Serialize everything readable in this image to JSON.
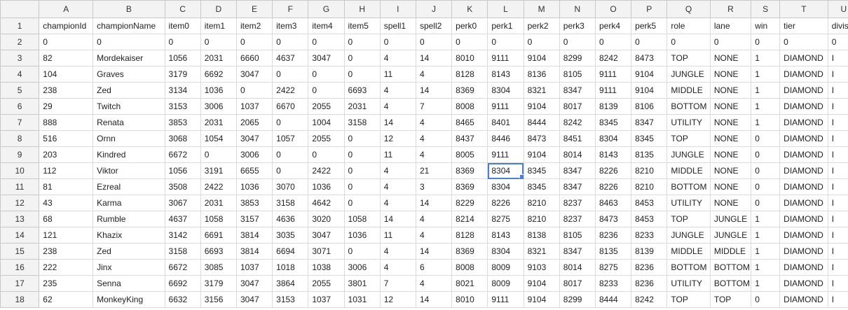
{
  "columns": [
    "A",
    "B",
    "C",
    "D",
    "E",
    "F",
    "G",
    "H",
    "I",
    "J",
    "K",
    "L",
    "M",
    "N",
    "O",
    "P",
    "Q",
    "R",
    "S",
    "T",
    "U"
  ],
  "selection": {
    "row": 10,
    "col": "L"
  },
  "rows": [
    {
      "num": "1",
      "cells": [
        "championId",
        "championName",
        "item0",
        "item1",
        "item2",
        "item3",
        "item4",
        "item5",
        "spell1",
        "spell2",
        "perk0",
        "perk1",
        "perk2",
        "perk3",
        "perk4",
        "perk5",
        "role",
        "lane",
        "win",
        "tier",
        "divisi"
      ]
    },
    {
      "num": "2",
      "cells": [
        "0",
        "0",
        "0",
        "0",
        "0",
        "0",
        "0",
        "0",
        "0",
        "0",
        "0",
        "0",
        "0",
        "0",
        "0",
        "0",
        "0",
        "0",
        "0",
        "0",
        "0"
      ]
    },
    {
      "num": "3",
      "cells": [
        "82",
        "Mordekaiser",
        "1056",
        "2031",
        "6660",
        "4637",
        "3047",
        "0",
        "4",
        "14",
        "8010",
        "9111",
        "9104",
        "8299",
        "8242",
        "8473",
        "TOP",
        "NONE",
        "1",
        "DIAMOND",
        "I"
      ]
    },
    {
      "num": "4",
      "cells": [
        "104",
        "Graves",
        "3179",
        "6692",
        "3047",
        "0",
        "0",
        "0",
        "11",
        "4",
        "8128",
        "8143",
        "8136",
        "8105",
        "9111",
        "9104",
        "JUNGLE",
        "NONE",
        "1",
        "DIAMOND",
        "I"
      ]
    },
    {
      "num": "5",
      "cells": [
        "238",
        "Zed",
        "3134",
        "1036",
        "0",
        "2422",
        "0",
        "6693",
        "4",
        "14",
        "8369",
        "8304",
        "8321",
        "8347",
        "9111",
        "9104",
        "MIDDLE",
        "NONE",
        "1",
        "DIAMOND",
        "I"
      ]
    },
    {
      "num": "6",
      "cells": [
        "29",
        "Twitch",
        "3153",
        "3006",
        "1037",
        "6670",
        "2055",
        "2031",
        "4",
        "7",
        "8008",
        "9111",
        "9104",
        "8017",
        "8139",
        "8106",
        "BOTTOM",
        "NONE",
        "1",
        "DIAMOND",
        "I"
      ]
    },
    {
      "num": "7",
      "cells": [
        "888",
        "Renata",
        "3853",
        "2031",
        "2065",
        "0",
        "1004",
        "3158",
        "14",
        "4",
        "8465",
        "8401",
        "8444",
        "8242",
        "8345",
        "8347",
        "UTILITY",
        "NONE",
        "1",
        "DIAMOND",
        "I"
      ]
    },
    {
      "num": "8",
      "cells": [
        "516",
        "Ornn",
        "3068",
        "1054",
        "3047",
        "1057",
        "2055",
        "0",
        "12",
        "4",
        "8437",
        "8446",
        "8473",
        "8451",
        "8304",
        "8345",
        "TOP",
        "NONE",
        "0",
        "DIAMOND",
        "I"
      ]
    },
    {
      "num": "9",
      "cells": [
        "203",
        "Kindred",
        "6672",
        "0",
        "3006",
        "0",
        "0",
        "0",
        "11",
        "4",
        "8005",
        "9111",
        "9104",
        "8014",
        "8143",
        "8135",
        "JUNGLE",
        "NONE",
        "0",
        "DIAMOND",
        "I"
      ]
    },
    {
      "num": "10",
      "cells": [
        "112",
        "Viktor",
        "1056",
        "3191",
        "6655",
        "0",
        "2422",
        "0",
        "4",
        "21",
        "8369",
        "8304",
        "8345",
        "8347",
        "8226",
        "8210",
        "MIDDLE",
        "NONE",
        "0",
        "DIAMOND",
        "I"
      ]
    },
    {
      "num": "11",
      "cells": [
        "81",
        "Ezreal",
        "3508",
        "2422",
        "1036",
        "3070",
        "1036",
        "0",
        "4",
        "3",
        "8369",
        "8304",
        "8345",
        "8347",
        "8226",
        "8210",
        "BOTTOM",
        "NONE",
        "0",
        "DIAMOND",
        "I"
      ]
    },
    {
      "num": "12",
      "cells": [
        "43",
        "Karma",
        "3067",
        "2031",
        "3853",
        "3158",
        "4642",
        "0",
        "4",
        "14",
        "8229",
        "8226",
        "8210",
        "8237",
        "8463",
        "8453",
        "UTILITY",
        "NONE",
        "0",
        "DIAMOND",
        "I"
      ]
    },
    {
      "num": "13",
      "cells": [
        "68",
        "Rumble",
        "4637",
        "1058",
        "3157",
        "4636",
        "3020",
        "1058",
        "14",
        "4",
        "8214",
        "8275",
        "8210",
        "8237",
        "8473",
        "8453",
        "TOP",
        "JUNGLE",
        "1",
        "DIAMOND",
        "I"
      ]
    },
    {
      "num": "14",
      "cells": [
        "121",
        "Khazix",
        "3142",
        "6691",
        "3814",
        "3035",
        "3047",
        "1036",
        "11",
        "4",
        "8128",
        "8143",
        "8138",
        "8105",
        "8236",
        "8233",
        "JUNGLE",
        "JUNGLE",
        "1",
        "DIAMOND",
        "I"
      ]
    },
    {
      "num": "15",
      "cells": [
        "238",
        "Zed",
        "3158",
        "6693",
        "3814",
        "6694",
        "3071",
        "0",
        "4",
        "14",
        "8369",
        "8304",
        "8321",
        "8347",
        "8135",
        "8139",
        "MIDDLE",
        "MIDDLE",
        "1",
        "DIAMOND",
        "I"
      ]
    },
    {
      "num": "16",
      "cells": [
        "222",
        "Jinx",
        "6672",
        "3085",
        "1037",
        "1018",
        "1038",
        "3006",
        "4",
        "6",
        "8008",
        "8009",
        "9103",
        "8014",
        "8275",
        "8236",
        "BOTTOM",
        "BOTTOM",
        "1",
        "DIAMOND",
        "I"
      ]
    },
    {
      "num": "17",
      "cells": [
        "235",
        "Senna",
        "6692",
        "3179",
        "3047",
        "3864",
        "2055",
        "3801",
        "7",
        "4",
        "8021",
        "8009",
        "9104",
        "8017",
        "8233",
        "8236",
        "UTILITY",
        "BOTTOM",
        "1",
        "DIAMOND",
        "I"
      ]
    },
    {
      "num": "18",
      "cells": [
        "62",
        "MonkeyKing",
        "6632",
        "3156",
        "3047",
        "3153",
        "1037",
        "1031",
        "12",
        "14",
        "8010",
        "9111",
        "9104",
        "8299",
        "8444",
        "8242",
        "TOP",
        "TOP",
        "0",
        "DIAMOND",
        "I"
      ]
    }
  ]
}
